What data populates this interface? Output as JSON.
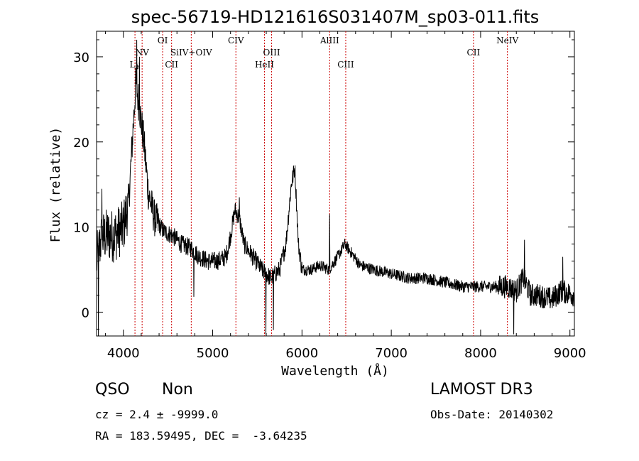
{
  "chart_data": {
    "type": "line",
    "title": "spec-56719-HD121616S031407M_sp03-011.fits",
    "xlabel": "Wavelength (Å)",
    "ylabel": "Flux (relative)",
    "xlim": [
      3700,
      9050
    ],
    "ylim": [
      -2.8,
      33
    ],
    "xticks": [
      4000,
      5000,
      6000,
      7000,
      8000,
      9000
    ],
    "yticks": [
      0,
      10,
      20,
      30
    ],
    "grid": false,
    "line_color": "#000000",
    "marker_color": "#cc0000",
    "lines": [
      {
        "label": "Lγ",
        "x": 4130,
        "level": 3
      },
      {
        "label": "NV",
        "x": 4210,
        "level": 2
      },
      {
        "label": "OI",
        "x": 4440,
        "level": 1
      },
      {
        "label": "CII",
        "x": 4540,
        "level": 3
      },
      {
        "label": "SiIV+OIV",
        "x": 4760,
        "level": 2
      },
      {
        "label": "CIV",
        "x": 5260,
        "level": 1
      },
      {
        "label": "HeII",
        "x": 5580,
        "level": 3
      },
      {
        "label": "OIII",
        "x": 5660,
        "level": 2
      },
      {
        "label": "AlIII",
        "x": 6310,
        "level": 1
      },
      {
        "label": "CIII",
        "x": 6490,
        "level": 3
      },
      {
        "label": "CII",
        "x": 7920,
        "level": 2
      },
      {
        "label": "NeIV",
        "x": 8300,
        "level": 1
      }
    ],
    "continuum": [
      [
        3700,
        6
      ],
      [
        3750,
        8.5
      ],
      [
        3800,
        9
      ],
      [
        3900,
        9
      ],
      [
        4000,
        10
      ],
      [
        4060,
        13
      ],
      [
        4100,
        20
      ],
      [
        4140,
        27
      ],
      [
        4180,
        24
      ],
      [
        4230,
        20
      ],
      [
        4280,
        14
      ],
      [
        4350,
        11
      ],
      [
        4450,
        9.5
      ],
      [
        4550,
        9
      ],
      [
        4650,
        8
      ],
      [
        4760,
        7.5
      ],
      [
        4850,
        6.5
      ],
      [
        4950,
        6
      ],
      [
        5050,
        6
      ],
      [
        5150,
        6.5
      ],
      [
        5200,
        9
      ],
      [
        5250,
        12
      ],
      [
        5300,
        11
      ],
      [
        5350,
        8
      ],
      [
        5450,
        6.5
      ],
      [
        5550,
        5
      ],
      [
        5650,
        4
      ],
      [
        5750,
        5
      ],
      [
        5820,
        8
      ],
      [
        5880,
        15
      ],
      [
        5920,
        17
      ],
      [
        5960,
        8
      ],
      [
        6000,
        5
      ],
      [
        6100,
        5
      ],
      [
        6200,
        5.5
      ],
      [
        6300,
        5
      ],
      [
        6400,
        6.5
      ],
      [
        6480,
        8
      ],
      [
        6550,
        7
      ],
      [
        6650,
        5.5
      ],
      [
        6800,
        5
      ],
      [
        7000,
        4.5
      ],
      [
        7200,
        4
      ],
      [
        7400,
        4
      ],
      [
        7600,
        3.5
      ],
      [
        7800,
        3
      ],
      [
        8000,
        3
      ],
      [
        8200,
        3
      ],
      [
        8300,
        3
      ],
      [
        8400,
        2.5
      ],
      [
        8480,
        4
      ],
      [
        8560,
        2
      ],
      [
        8650,
        2
      ],
      [
        8800,
        1.5
      ],
      [
        8900,
        2.5
      ],
      [
        9050,
        2
      ]
    ],
    "spikes": [
      [
        3720,
        -2.8
      ],
      [
        3760,
        14.5
      ],
      [
        4150,
        32
      ],
      [
        4180,
        30
      ],
      [
        4790,
        1.8
      ],
      [
        5300,
        13.5
      ],
      [
        5595,
        -2.6
      ],
      [
        5680,
        -2.1
      ],
      [
        6310,
        11.5
      ],
      [
        8370,
        -2.6
      ],
      [
        8490,
        8.5
      ],
      [
        8920,
        6.5
      ]
    ]
  },
  "footer": {
    "object_class": "QSO",
    "subclass": "Non",
    "survey": "LAMOST DR3",
    "cz_line": "cz = 2.4 ± -9999.0",
    "obs_date_line": "Obs-Date: 20140302",
    "radec_line": "RA = 183.59495, DEC =  -3.64235"
  }
}
